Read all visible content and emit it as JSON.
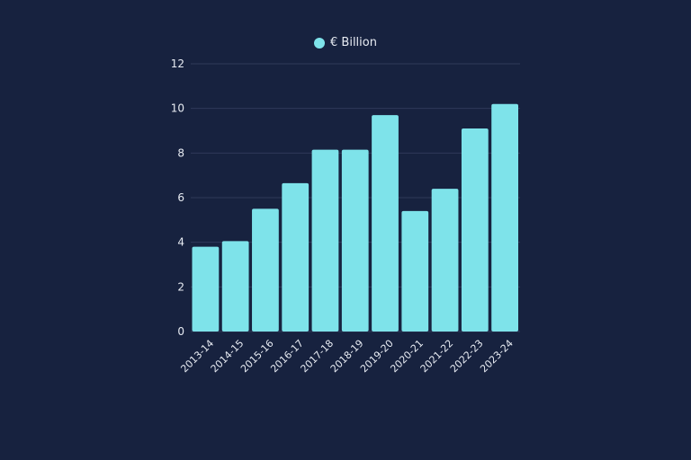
{
  "legend": {
    "label": "€ Billion"
  },
  "colors": {
    "background": "#17223f",
    "bar": "#7ee3ea",
    "grid": "#2f3a5a",
    "text": "#e8ecf3"
  },
  "chart_data": {
    "type": "bar",
    "categories": [
      "2013-14",
      "2014-15",
      "2015-16",
      "2016-17",
      "2017-18",
      "2018-19",
      "2019-20",
      "2020-21",
      "2021-22",
      "2022-23",
      "2023-24"
    ],
    "series": [
      {
        "name": "€ Billion",
        "values": [
          3.8,
          4.05,
          5.5,
          6.65,
          8.15,
          8.15,
          9.7,
          5.4,
          6.4,
          9.1,
          10.2
        ]
      }
    ],
    "yticks": [
      0,
      2,
      4,
      6,
      8,
      10,
      12
    ],
    "ylim": [
      0,
      12
    ],
    "grid": true,
    "legend_position": "top-center",
    "xlabel": "",
    "ylabel": ""
  }
}
